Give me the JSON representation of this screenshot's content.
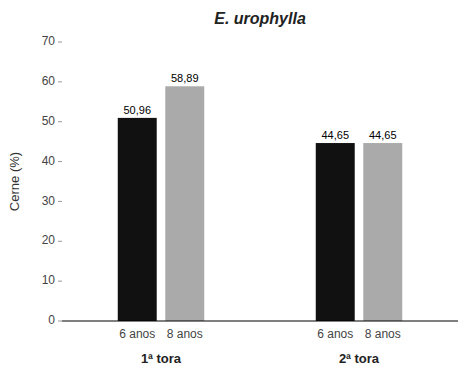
{
  "chart_data": {
    "type": "bar",
    "title": "E. urophylla",
    "ylabel": "Cerne (%)",
    "categories": [
      "1ª tora",
      "2ª tora"
    ],
    "series": [
      {
        "name": "6 anos",
        "color": "#111111",
        "values": [
          50.96,
          44.65
        ],
        "value_labels": [
          "50,96",
          "44,65"
        ]
      },
      {
        "name": "8 anos",
        "color": "#aaaaaa",
        "values": [
          58.89,
          44.65
        ],
        "value_labels": [
          "58,89",
          "44,65"
        ]
      }
    ],
    "ylim": [
      0,
      70
    ],
    "yticks": [
      0,
      10,
      20,
      30,
      40,
      50,
      60,
      70
    ],
    "grid": false
  }
}
